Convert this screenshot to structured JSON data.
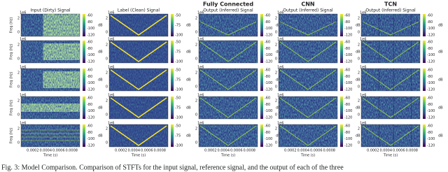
{
  "columns": [
    {
      "title": "Input (Dirty) Signal",
      "colorbar_ticks": [
        "-60",
        "-80",
        "-100",
        "-120"
      ]
    },
    {
      "title": "Label (Clean) Signal",
      "colorbar_ticks": [
        "-50",
        "-75",
        "-100"
      ]
    },
    {
      "header": "Fully Connected",
      "title": "Output (Inferred) Signal",
      "colorbar_ticks": [
        "-60",
        "-80",
        "-100",
        "-120"
      ]
    },
    {
      "header": "CNN",
      "title": "Output (Inferred) Signal",
      "colorbar_ticks": [
        "-60",
        "-80",
        "-100",
        "-120"
      ]
    },
    {
      "header": "TCN",
      "title": "Output (Inferred) Signal",
      "colorbar_ticks": [
        "-60",
        "-80",
        "-100",
        "-120"
      ]
    }
  ],
  "y_axis": {
    "label": "Freq (Hz)",
    "multiplier": "1e6",
    "ticks": [
      "2",
      "0"
    ]
  },
  "x_axis": {
    "label": "Time (s)",
    "ticks": [
      "0.0002",
      "0.0004",
      "0.0006",
      "0.0008"
    ]
  },
  "colorbar_unit": "dB",
  "caption": "Fig. 3: Model Comparison. Comparison of STFTs for the input signal, reference signal, and the output of each of the three"
}
